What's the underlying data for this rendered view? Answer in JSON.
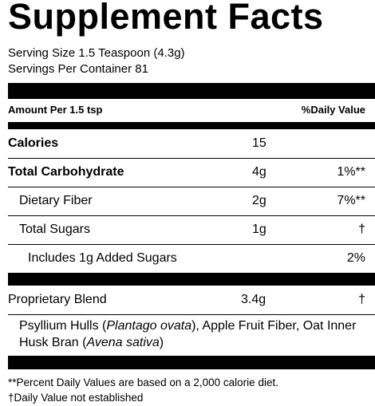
{
  "title": "Supplement Facts",
  "serving_size": "Serving Size 1.5 Teaspoon (4.3g)",
  "servings_per_container": "Servings Per Container 81",
  "header": {
    "amount_per": "Amount Per 1.5 tsp",
    "daily_value": "%Daily Value"
  },
  "rows": [
    {
      "label": "Calories",
      "amount": "15",
      "dv": ""
    },
    {
      "label": "Total Carbohydrate",
      "amount": "4g",
      "dv": "1%**"
    },
    {
      "label": "Dietary Fiber",
      "amount": "2g",
      "dv": "7%**"
    },
    {
      "label": "Total Sugars",
      "amount": "1g",
      "dv": "†"
    },
    {
      "label": "Includes 1g Added Sugars",
      "amount": "",
      "dv": "2%"
    }
  ],
  "blend": {
    "label": "Proprietary Blend",
    "amount": "3.4g",
    "dv": "†"
  },
  "ingredients": {
    "part1": "Psyllium Hulls (",
    "italic1": "Plantago ovata",
    "part2": "), Apple Fruit Fiber, Oat Inner Husk Bran (",
    "italic2": "Avena sativa",
    "part3": ")"
  },
  "footnotes": {
    "percent_dv": "**Percent Daily Values are based on a 2,000 calorie diet.",
    "not_established": "†Daily Value not established"
  }
}
